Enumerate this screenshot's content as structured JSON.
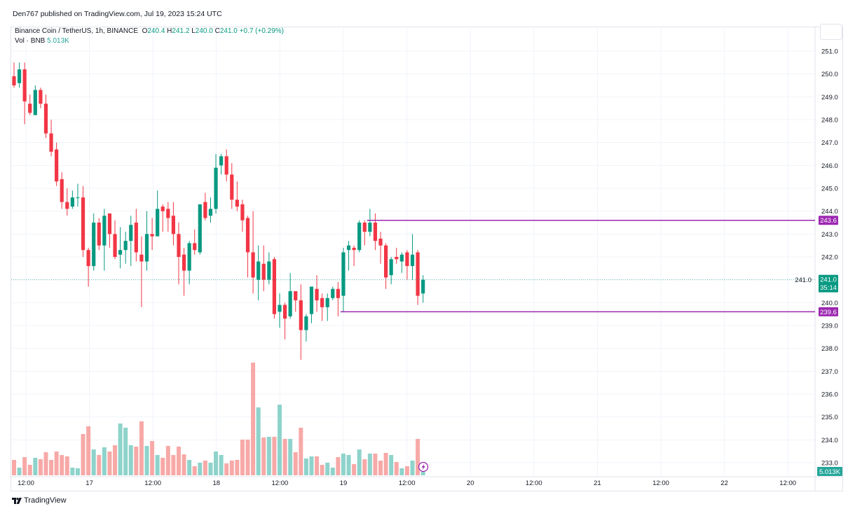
{
  "publisher": "Den767 published on TradingView.com, Jul 19, 2023 15:24 UTC",
  "legend": {
    "symbol": "Binance Coin / TetherUS, 1h, BINANCE",
    "open_label": "O",
    "open": "240.4",
    "high_label": "H",
    "high": "241.2",
    "low_label": "L",
    "low": "240.0",
    "close_label": "C",
    "close": "241.0",
    "change": "+0.7 (+0.29%)",
    "volume_label": "Vol · BNB",
    "volume": "5.013K"
  },
  "footer": {
    "brand": "TradingView"
  },
  "colors": {
    "up": "#089981",
    "down": "#f23645",
    "up_volume": "#8ed3cb",
    "down_volume": "#f7a9a7",
    "level_line": "#9c27b0",
    "last_price": "#089981"
  },
  "chart_data": {
    "type": "candlestick",
    "interval": "1h",
    "grid": true,
    "price_axis": {
      "side": "right",
      "range": [
        233.0,
        251.0
      ],
      "ticks": [
        "251.0",
        "250.0",
        "249.0",
        "248.0",
        "247.0",
        "246.0",
        "245.0",
        "244.0",
        "243.0",
        "242.0",
        "241.0",
        "240.0",
        "239.0",
        "238.0",
        "237.0",
        "236.0",
        "235.0",
        "234.0",
        "233.0"
      ]
    },
    "time_axis": {
      "ticks": [
        "12:00",
        "17",
        "12:00",
        "18",
        "12:00",
        "19",
        "12:00",
        "20",
        "12:00",
        "21",
        "12:00",
        "22",
        "12:00"
      ]
    },
    "volume_unit": "K",
    "candles": [
      {
        "o": 249.9,
        "h": 250.5,
        "l": 249.4,
        "c": 249.5,
        "v": 22
      },
      {
        "o": 249.6,
        "h": 250.5,
        "l": 249.4,
        "c": 250.2,
        "v": 11
      },
      {
        "o": 250.2,
        "h": 250.5,
        "l": 247.8,
        "c": 248.8,
        "v": 26
      },
      {
        "o": 248.7,
        "h": 249.1,
        "l": 248.2,
        "c": 248.3,
        "v": 15
      },
      {
        "o": 248.2,
        "h": 249.5,
        "l": 248.2,
        "c": 249.3,
        "v": 25
      },
      {
        "o": 249.3,
        "h": 249.4,
        "l": 248.5,
        "c": 248.7,
        "v": 23
      },
      {
        "o": 248.7,
        "h": 249.1,
        "l": 247.2,
        "c": 247.4,
        "v": 33
      },
      {
        "o": 247.4,
        "h": 248.0,
        "l": 246.4,
        "c": 246.6,
        "v": 22
      },
      {
        "o": 246.7,
        "h": 247.0,
        "l": 245.1,
        "c": 245.3,
        "v": 34
      },
      {
        "o": 245.4,
        "h": 245.7,
        "l": 244.1,
        "c": 244.4,
        "v": 29
      },
      {
        "o": 244.4,
        "h": 245.0,
        "l": 243.8,
        "c": 244.1,
        "v": 27
      },
      {
        "o": 244.2,
        "h": 244.9,
        "l": 244.1,
        "c": 244.6,
        "v": 11
      },
      {
        "o": 244.6,
        "h": 245.2,
        "l": 244.2,
        "c": 244.6,
        "v": 10
      },
      {
        "o": 244.6,
        "h": 245.1,
        "l": 242.0,
        "c": 242.3,
        "v": 59
      },
      {
        "o": 242.3,
        "h": 242.4,
        "l": 240.7,
        "c": 241.6,
        "v": 70
      },
      {
        "o": 241.6,
        "h": 243.9,
        "l": 241.4,
        "c": 243.5,
        "v": 37
      },
      {
        "o": 243.5,
        "h": 243.7,
        "l": 242.3,
        "c": 242.5,
        "v": 29
      },
      {
        "o": 242.5,
        "h": 244.1,
        "l": 241.4,
        "c": 243.8,
        "v": 40
      },
      {
        "o": 243.9,
        "h": 243.9,
        "l": 242.4,
        "c": 243.0,
        "v": 34
      },
      {
        "o": 243.0,
        "h": 243.6,
        "l": 241.9,
        "c": 242.0,
        "v": 43
      },
      {
        "o": 242.1,
        "h": 243.3,
        "l": 241.5,
        "c": 242.3,
        "v": 74
      },
      {
        "o": 242.3,
        "h": 243.1,
        "l": 241.7,
        "c": 242.7,
        "v": 68
      },
      {
        "o": 242.7,
        "h": 243.8,
        "l": 241.6,
        "c": 243.4,
        "v": 43
      },
      {
        "o": 243.5,
        "h": 244.1,
        "l": 241.8,
        "c": 242.2,
        "v": 41
      },
      {
        "o": 242.1,
        "h": 242.9,
        "l": 239.8,
        "c": 241.8,
        "v": 77
      },
      {
        "o": 241.8,
        "h": 244.0,
        "l": 241.4,
        "c": 243.0,
        "v": 42
      },
      {
        "o": 243.0,
        "h": 243.7,
        "l": 242.3,
        "c": 242.9,
        "v": 49
      },
      {
        "o": 242.9,
        "h": 244.9,
        "l": 242.9,
        "c": 244.1,
        "v": 29
      },
      {
        "o": 244.2,
        "h": 244.3,
        "l": 243.1,
        "c": 244.0,
        "v": 25
      },
      {
        "o": 244.1,
        "h": 244.4,
        "l": 243.1,
        "c": 243.7,
        "v": 42
      },
      {
        "o": 243.8,
        "h": 244.4,
        "l": 242.5,
        "c": 243.0,
        "v": 29
      },
      {
        "o": 243.0,
        "h": 243.5,
        "l": 240.8,
        "c": 242.0,
        "v": 41
      },
      {
        "o": 242.1,
        "h": 242.4,
        "l": 240.3,
        "c": 241.4,
        "v": 30
      },
      {
        "o": 241.4,
        "h": 242.7,
        "l": 240.8,
        "c": 242.6,
        "v": 22
      },
      {
        "o": 242.6,
        "h": 243.2,
        "l": 242.1,
        "c": 242.3,
        "v": 13
      },
      {
        "o": 242.2,
        "h": 244.3,
        "l": 242.1,
        "c": 244.3,
        "v": 18
      },
      {
        "o": 244.4,
        "h": 244.8,
        "l": 243.6,
        "c": 243.7,
        "v": 21
      },
      {
        "o": 243.8,
        "h": 244.6,
        "l": 243.5,
        "c": 244.1,
        "v": 18
      },
      {
        "o": 244.1,
        "h": 246.5,
        "l": 243.9,
        "c": 245.9,
        "v": 34
      },
      {
        "o": 246.0,
        "h": 246.5,
        "l": 245.6,
        "c": 246.4,
        "v": 29
      },
      {
        "o": 246.4,
        "h": 246.7,
        "l": 245.3,
        "c": 245.6,
        "v": 17
      },
      {
        "o": 245.6,
        "h": 246.1,
        "l": 244.1,
        "c": 244.5,
        "v": 21
      },
      {
        "o": 244.5,
        "h": 245.3,
        "l": 244.0,
        "c": 244.2,
        "v": 22
      },
      {
        "o": 244.3,
        "h": 244.5,
        "l": 243.1,
        "c": 243.6,
        "v": 51
      },
      {
        "o": 243.7,
        "h": 243.8,
        "l": 241.1,
        "c": 242.2,
        "v": 51
      },
      {
        "o": 242.2,
        "h": 244.0,
        "l": 240.4,
        "c": 241.1,
        "v": 161
      },
      {
        "o": 241.0,
        "h": 242.5,
        "l": 240.1,
        "c": 241.8,
        "v": 97
      },
      {
        "o": 241.7,
        "h": 242.5,
        "l": 240.5,
        "c": 241.0,
        "v": 54
      },
      {
        "o": 241.0,
        "h": 242.2,
        "l": 240.8,
        "c": 241.8,
        "v": 55
      },
      {
        "o": 241.9,
        "h": 242.0,
        "l": 239.3,
        "c": 239.5,
        "v": 55
      },
      {
        "o": 239.6,
        "h": 240.4,
        "l": 238.9,
        "c": 239.9,
        "v": 101
      },
      {
        "o": 239.9,
        "h": 240.0,
        "l": 238.4,
        "c": 239.3,
        "v": 52
      },
      {
        "o": 239.4,
        "h": 241.3,
        "l": 239.3,
        "c": 240.5,
        "v": 52
      },
      {
        "o": 240.5,
        "h": 240.5,
        "l": 239.6,
        "c": 240.1,
        "v": 33
      },
      {
        "o": 240.1,
        "h": 240.8,
        "l": 237.5,
        "c": 238.8,
        "v": 68
      },
      {
        "o": 238.8,
        "h": 239.5,
        "l": 238.3,
        "c": 239.4,
        "v": 24
      },
      {
        "o": 239.5,
        "h": 240.7,
        "l": 239.1,
        "c": 240.7,
        "v": 27
      },
      {
        "o": 240.6,
        "h": 241.2,
        "l": 239.6,
        "c": 240.1,
        "v": 27
      },
      {
        "o": 240.2,
        "h": 240.4,
        "l": 239.2,
        "c": 239.8,
        "v": 15
      },
      {
        "o": 239.8,
        "h": 240.4,
        "l": 239.2,
        "c": 240.2,
        "v": 18
      },
      {
        "o": 240.2,
        "h": 240.7,
        "l": 240.1,
        "c": 240.6,
        "v": 11
      },
      {
        "o": 240.6,
        "h": 240.9,
        "l": 239.4,
        "c": 240.2,
        "v": 26
      },
      {
        "o": 240.3,
        "h": 242.4,
        "l": 239.6,
        "c": 242.2,
        "v": 31
      },
      {
        "o": 242.3,
        "h": 242.7,
        "l": 241.4,
        "c": 242.5,
        "v": 29
      },
      {
        "o": 242.4,
        "h": 242.5,
        "l": 241.6,
        "c": 242.3,
        "v": 16
      },
      {
        "o": 242.3,
        "h": 243.6,
        "l": 242.2,
        "c": 243.5,
        "v": 37
      },
      {
        "o": 243.5,
        "h": 243.6,
        "l": 242.5,
        "c": 243.1,
        "v": 23
      },
      {
        "o": 243.1,
        "h": 244.1,
        "l": 242.9,
        "c": 243.5,
        "v": 31
      },
      {
        "o": 243.5,
        "h": 243.9,
        "l": 242.3,
        "c": 242.7,
        "v": 31
      },
      {
        "o": 242.8,
        "h": 243.1,
        "l": 241.7,
        "c": 242.5,
        "v": 21
      },
      {
        "o": 242.5,
        "h": 242.6,
        "l": 240.6,
        "c": 241.1,
        "v": 32
      },
      {
        "o": 241.2,
        "h": 242.0,
        "l": 240.8,
        "c": 241.9,
        "v": 29
      },
      {
        "o": 242.0,
        "h": 242.4,
        "l": 241.7,
        "c": 241.9,
        "v": 19
      },
      {
        "o": 241.8,
        "h": 242.2,
        "l": 241.3,
        "c": 242.1,
        "v": 10
      },
      {
        "o": 242.2,
        "h": 242.3,
        "l": 241.0,
        "c": 241.6,
        "v": 13
      },
      {
        "o": 241.6,
        "h": 243.0,
        "l": 241.0,
        "c": 242.1,
        "v": 21
      },
      {
        "o": 242.2,
        "h": 242.3,
        "l": 239.9,
        "c": 240.3,
        "v": 52
      },
      {
        "o": 240.4,
        "h": 241.2,
        "l": 240.0,
        "c": 241.0,
        "v": 5.013
      }
    ],
    "horizontal_levels": [
      {
        "price": 243.6,
        "label": "243.6",
        "from_candle": 67
      },
      {
        "price": 239.6,
        "label": "239.6",
        "from_candle": 62
      }
    ],
    "last_price": {
      "price": 241.0,
      "label": "241.0",
      "countdown": "35:14"
    },
    "last_volume_label": "5.013K"
  }
}
